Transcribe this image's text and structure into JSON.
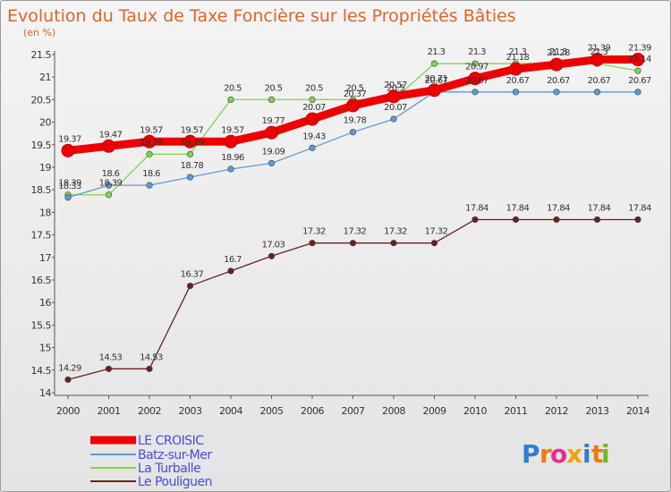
{
  "chart_data": {
    "type": "line",
    "title": "Evolution du Taux de Taxe Foncière sur les Propriétés Bâties",
    "ylabel": "(en %)",
    "xlabel": "",
    "ylim": [
      14,
      21.5
    ],
    "yticks": [
      14,
      14.5,
      15,
      15.5,
      16,
      16.5,
      17,
      17.5,
      18,
      18.5,
      19,
      19.5,
      20,
      20.5,
      21,
      21.5
    ],
    "ytick_labels": [
      "14",
      "14.5",
      "15",
      "15.5",
      "16",
      "16.5",
      "17",
      "17.5",
      "18",
      "18.5",
      "19",
      "19.5",
      "20",
      "20.5",
      "21",
      "21.5"
    ],
    "categories": [
      "2000",
      "2001",
      "2002",
      "2003",
      "2004",
      "2005",
      "2006",
      "2007",
      "2008",
      "2009",
      "2010",
      "2011",
      "2012",
      "2013",
      "2014"
    ],
    "grid": false,
    "legend_position": "bottom-left",
    "series": [
      {
        "name": "LE CROISIC",
        "color": "#ee0000",
        "values": [
          19.37,
          19.47,
          19.57,
          19.57,
          19.57,
          19.77,
          20.07,
          20.37,
          20.57,
          20.71,
          20.97,
          21.18,
          21.28,
          21.39,
          21.39
        ],
        "labels": [
          "19.37",
          "19.47",
          "19.57",
          "19.57",
          "19.57",
          "19.77",
          "20.07",
          "20.37",
          "20.57",
          "20.71",
          "20.97",
          "21.18",
          "21.28",
          "21.39",
          "21.39"
        ]
      },
      {
        "name": "Batz-sur-Mer",
        "color": "#5b9bd5",
        "values": [
          18.33,
          18.6,
          18.6,
          18.78,
          18.96,
          19.09,
          19.43,
          19.78,
          20.07,
          20.67,
          20.67,
          20.67,
          20.67,
          20.67,
          20.67
        ],
        "labels": [
          "18.33",
          "18.6",
          "18.6",
          "18.78",
          "18.96",
          "19.09",
          "19.43",
          "19.78",
          "20.07",
          "20.67",
          "20.67",
          "20.67",
          "20.67",
          "20.67",
          "20.67"
        ]
      },
      {
        "name": "La Turballe",
        "color": "#7fd44c",
        "values": [
          18.39,
          18.39,
          19.29,
          19.29,
          20.5,
          20.5,
          20.5,
          20.5,
          20.5,
          21.3,
          21.3,
          21.3,
          21.3,
          21.3,
          21.14
        ],
        "labels": [
          "18.39",
          "18.39",
          "19.29",
          "19.29",
          "20.5",
          "20.5",
          "20.5",
          "20.5",
          "20.5",
          "21.3",
          "21.3",
          "21.3",
          "21.3",
          "21.3",
          "21.14"
        ]
      },
      {
        "name": "Le Pouliguen",
        "color": "#6b1f1f",
        "values": [
          14.29,
          14.53,
          14.53,
          16.37,
          16.7,
          17.03,
          17.32,
          17.32,
          17.32,
          17.32,
          17.84,
          17.84,
          17.84,
          17.84,
          17.84
        ],
        "labels": [
          "14.29",
          "14.53",
          "14.53",
          "16.37",
          "16.7",
          "17.03",
          "17.32",
          "17.32",
          "17.32",
          "17.32",
          "17.84",
          "17.84",
          "17.84",
          "17.84",
          "17.84"
        ]
      }
    ]
  },
  "branding": {
    "logo_letters": [
      "P",
      "r",
      "o",
      "x",
      "i",
      "t",
      "i"
    ],
    "logo_colors": [
      "#2f7fd0",
      "#f07a10",
      "#e62e8f",
      "#f1a20a",
      "#2f7fd0",
      "#f07a10",
      "#72b72e"
    ]
  }
}
